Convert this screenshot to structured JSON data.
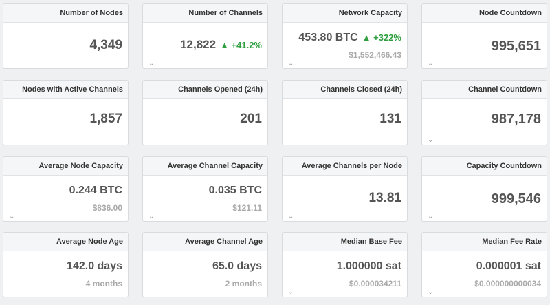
{
  "cards": {
    "nodes": {
      "title": "Number of Nodes",
      "value": "4,349"
    },
    "channels": {
      "title": "Number of Channels",
      "value": "12,822",
      "delta": "▲ +41.2%"
    },
    "capacity": {
      "title": "Network Capacity",
      "value": "453.80 BTC",
      "delta": "▲ +322%",
      "usd": "$1,552,466.43"
    },
    "node_countdown": {
      "title": "Node Countdown",
      "value": "995,651"
    },
    "active_nodes": {
      "title": "Nodes with Active Channels",
      "value": "1,857"
    },
    "opened": {
      "title": "Channels Opened (24h)",
      "value": "201"
    },
    "closed": {
      "title": "Channels Closed (24h)",
      "value": "131"
    },
    "channel_countdown": {
      "title": "Channel Countdown",
      "value": "987,178"
    },
    "avg_node_cap": {
      "title": "Average Node Capacity",
      "value": "0.244 BTC",
      "usd": "$836.00"
    },
    "avg_chan_cap": {
      "title": "Average Channel Capacity",
      "value": "0.035 BTC",
      "usd": "$121.11"
    },
    "avg_chan_per_node": {
      "title": "Average Channels per Node",
      "value": "13.81"
    },
    "capacity_countdown": {
      "title": "Capacity Countdown",
      "value": "999,546"
    },
    "avg_node_age": {
      "title": "Average Node Age",
      "value": "142.0 days",
      "sub": "4 months"
    },
    "avg_chan_age": {
      "title": "Average Channel Age",
      "value": "65.0 days",
      "sub": "2 months"
    },
    "median_base_fee": {
      "title": "Median Base Fee",
      "value": "1.000000 sat",
      "usd": "$0.000034211"
    },
    "median_fee_rate": {
      "title": "Median Fee Rate",
      "value": "0.000001 sat",
      "usd": "$0.000000000034"
    }
  },
  "icons": {
    "expand": "chevron-down-icon"
  },
  "colors": {
    "positive": "#2e9e3e",
    "muted": "#aaaaaa"
  }
}
